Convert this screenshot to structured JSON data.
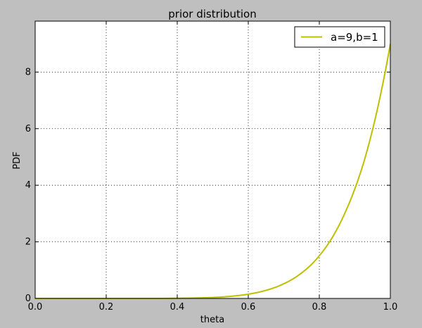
{
  "colors": {
    "figure_background": "#bfbfbf",
    "plot_background": "#ffffff",
    "series": "#bfbf00",
    "grid": "#000000",
    "text": "#000000"
  },
  "chart_data": {
    "type": "line",
    "title": "prior distribution",
    "xlabel": "theta",
    "ylabel": "PDF",
    "xlim": [
      0.0,
      1.0
    ],
    "ylim": [
      0.0,
      9.8
    ],
    "x_ticks": [
      0.0,
      0.2,
      0.4,
      0.6,
      0.8,
      1.0
    ],
    "x_tick_labels": [
      "0.0",
      "0.2",
      "0.4",
      "0.6",
      "0.8",
      "1.0"
    ],
    "y_ticks": [
      0,
      2,
      4,
      6,
      8
    ],
    "y_tick_labels": [
      "0",
      "2",
      "4",
      "6",
      "8"
    ],
    "grid": true,
    "legend_position": "top-right",
    "series": [
      {
        "name": "a=9,b=1",
        "x": [
          0.0,
          0.05,
          0.1,
          0.15,
          0.2,
          0.25,
          0.3,
          0.35,
          0.4,
          0.45,
          0.5,
          0.55,
          0.6,
          0.65,
          0.7,
          0.75,
          0.8,
          0.825,
          0.85,
          0.875,
          0.9,
          0.925,
          0.95,
          0.975,
          1.0
        ],
        "y": [
          0.0,
          0.0,
          0.0,
          0.0,
          0.0,
          0.0,
          0.0,
          0.0,
          0.006,
          0.015,
          0.035,
          0.075,
          0.151,
          0.287,
          0.519,
          0.901,
          1.51,
          1.928,
          2.452,
          3.102,
          3.874,
          4.809,
          5.97,
          7.357,
          9.0
        ]
      }
    ]
  }
}
